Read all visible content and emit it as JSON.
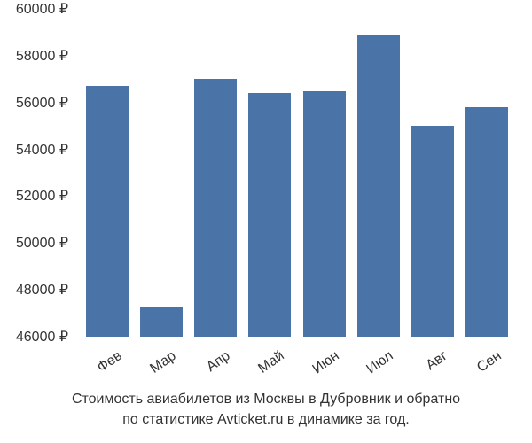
{
  "chart": {
    "type": "bar",
    "categories": [
      "Фев",
      "Мар",
      "Апр",
      "Май",
      "Июн",
      "Июл",
      "Авг",
      "Сен"
    ],
    "values": [
      56700,
      47300,
      57000,
      56400,
      56500,
      58900,
      55000,
      55800
    ],
    "bar_color": "#4a74a8",
    "ylim": [
      46000,
      60000
    ],
    "ytick_step": 2000,
    "ytick_labels": [
      "46000 ₽",
      "48000 ₽",
      "50000 ₽",
      "52000 ₽",
      "54000 ₽",
      "56000 ₽",
      "58000 ₽",
      "60000 ₽"
    ],
    "ytick_values": [
      46000,
      48000,
      50000,
      52000,
      54000,
      56000,
      58000,
      60000
    ],
    "background_color": "#ffffff",
    "bar_width_ratio": 0.78,
    "label_fontsize": 16,
    "label_color": "#333333",
    "x_label_rotation": -35
  },
  "caption": {
    "line1": "Стоимость авиабилетов из Москвы в Дубровник и обратно",
    "line2": "по статистике Avticket.ru в динамике за год."
  }
}
